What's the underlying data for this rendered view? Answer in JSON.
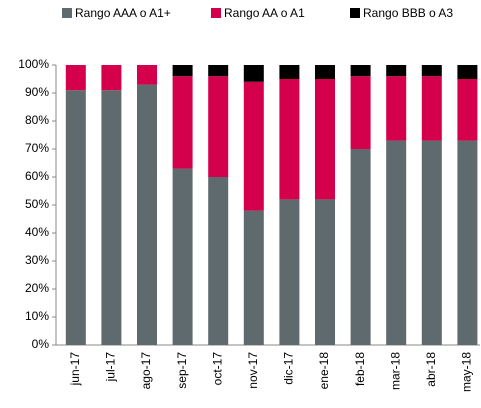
{
  "chart_data": {
    "type": "stacked_bar",
    "categories": [
      "jun-17",
      "jul-17",
      "ago-17",
      "sep-17",
      "oct-17",
      "nov-17",
      "dic-17",
      "ene-18",
      "feb-18",
      "mar-18",
      "abr-18",
      "may-18"
    ],
    "series": [
      {
        "name": "Rango AAA o A1+",
        "color": "#5f6a6e",
        "values": [
          91,
          91,
          93,
          63,
          60,
          48,
          52,
          52,
          70,
          73,
          73,
          73
        ]
      },
      {
        "name": "Rango AA o A1",
        "color": "#d4004c",
        "values": [
          9,
          9,
          7,
          33,
          36,
          46,
          43,
          43,
          26,
          23,
          23,
          22
        ]
      },
      {
        "name": "Rango BBB o A3",
        "color": "#000000",
        "values": [
          0,
          0,
          0,
          4,
          4,
          6,
          5,
          5,
          4,
          4,
          4,
          5
        ]
      }
    ],
    "ylim": [
      0,
      100
    ],
    "yticks": [
      {
        "value": 0,
        "label": "0%"
      },
      {
        "value": 10,
        "label": "10%"
      },
      {
        "value": 20,
        "label": "20%"
      },
      {
        "value": 30,
        "label": "30%"
      },
      {
        "value": 40,
        "label": "40%"
      },
      {
        "value": 50,
        "label": "50%"
      },
      {
        "value": 60,
        "label": "60%"
      },
      {
        "value": 70,
        "label": "70%"
      },
      {
        "value": 80,
        "label": "80%"
      },
      {
        "value": 90,
        "label": "90%"
      },
      {
        "value": 100,
        "label": "100%"
      }
    ],
    "legend": "top"
  }
}
